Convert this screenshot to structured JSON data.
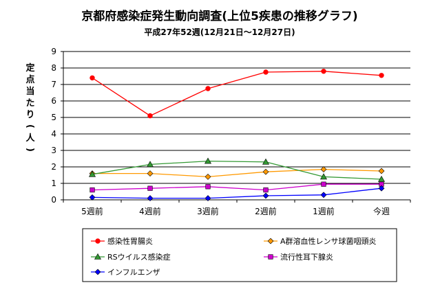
{
  "chart_data": {
    "type": "line",
    "title": "京都府感染症発生動向調査(上位5疾患の推移グラフ)",
    "subtitle": "平成27年52週(12月21日～12月27日)",
    "ylabel": "定点当たり(人)",
    "xlabel": "",
    "categories": [
      "5週前",
      "4週前",
      "3週前",
      "2週前",
      "1週前",
      "今週"
    ],
    "ylim": [
      0,
      9
    ],
    "yticks": [
      0,
      1,
      2,
      3,
      4,
      5,
      6,
      7,
      8,
      9
    ],
    "grid": true,
    "legend_position": "bottom",
    "series": [
      {
        "name": "感染性胃腸炎",
        "color": "#ff0000",
        "marker": "circle",
        "values": [
          7.4,
          5.1,
          6.75,
          7.75,
          7.8,
          7.55
        ]
      },
      {
        "name": "A群溶血性レンサ球菌咽頭炎",
        "color": "#ff9900",
        "marker": "diamond",
        "values": [
          1.6,
          1.6,
          1.4,
          1.7,
          1.85,
          1.75
        ]
      },
      {
        "name": "RSウイルス感染症",
        "color": "#339933",
        "marker": "triangle",
        "values": [
          1.55,
          2.15,
          2.35,
          2.3,
          1.4,
          1.25
        ]
      },
      {
        "name": "流行性耳下腺炎",
        "color": "#cc00cc",
        "marker": "square",
        "values": [
          0.6,
          0.7,
          0.8,
          0.6,
          0.95,
          0.95
        ]
      },
      {
        "name": "インフルエンザ",
        "color": "#0000ff",
        "marker": "diamond",
        "values": [
          0.15,
          0.1,
          0.1,
          0.25,
          0.3,
          0.7
        ]
      }
    ]
  }
}
